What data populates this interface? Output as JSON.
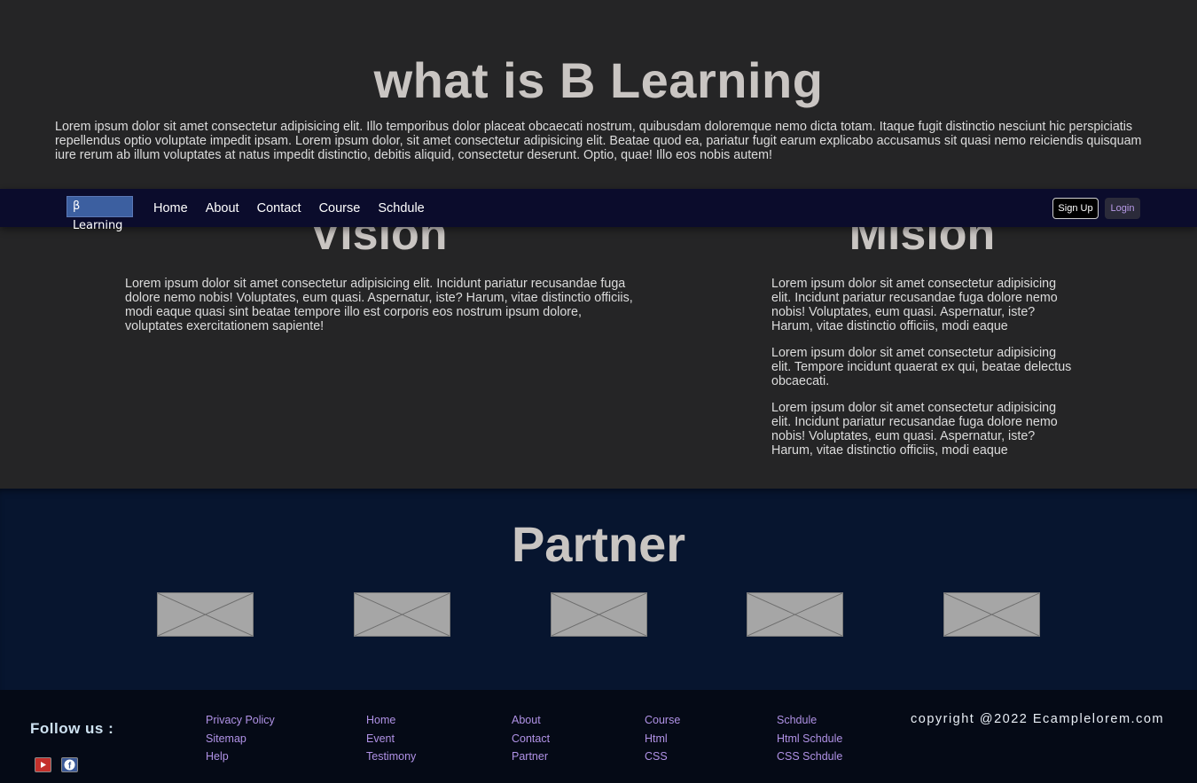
{
  "intro": {
    "title": "what is B Learning",
    "text": "Lorem ipsum dolor sit amet consectetur adipisicing elit. Illo temporibus dolor placeat obcaecati nostrum, quibusdam doloremque nemo dicta totam. Itaque fugit distinctio nesciunt hic perspiciatis repellendus optio voluptate impedit ipsam. Lorem ipsum dolor, sit amet consectetur adipisicing elit. Beatae quod ea, pariatur fugit earum explicabo accusamus sit quasi nemo reiciendis quisquam iure rerum ab illum voluptates at natus impedit distinctio, debitis aliquid, consectetur deserunt. Optio, quae! Illo eos nobis autem!"
  },
  "navbar": {
    "brand": "β Learning",
    "links": [
      "Home",
      "About",
      "Contact",
      "Course",
      "Schdule"
    ],
    "signup_label": "Sign Up",
    "login_label": "Login"
  },
  "vision": {
    "title": "Vision",
    "text": "Lorem ipsum dolor sit amet consectetur adipisicing elit. Incidunt pariatur recusandae fuga dolore nemo nobis! Voluptates, eum quasi. Aspernatur, iste? Harum, vitae distinctio officiis, modi eaque quasi sint beatae tempore illo est corporis eos nostrum ipsum dolore, voluptates exercitationem sapiente!"
  },
  "mision": {
    "title": "Mision",
    "paragraphs": [
      "Lorem ipsum dolor sit amet consectetur adipisicing elit. Incidunt pariatur recusandae fuga dolore nemo nobis! Voluptates, eum quasi. Aspernatur, iste? Harum, vitae distinctio officiis, modi eaque",
      "Lorem ipsum dolor sit amet consectetur adipisicing elit. Tempore incidunt quaerat ex qui, beatae delectus obcaecati.",
      "Lorem ipsum dolor sit amet consectetur adipisicing elit. Incidunt pariatur recusandae fuga dolore nemo nobis! Voluptates, eum quasi. Aspernatur, iste? Harum, vitae distinctio officiis, modi eaque"
    ]
  },
  "partner": {
    "title": "Partner"
  },
  "footer": {
    "follow_label": "Follow us :",
    "social_icons": [
      "youtube-icon",
      "facebook-icon"
    ],
    "columns": [
      [
        "Privacy Policy",
        "Sitemap",
        "Help"
      ],
      [
        "Home",
        "Event",
        "Testimony"
      ],
      [
        "About",
        "Contact",
        "Partner"
      ],
      [
        "Course",
        "Html",
        "CSS"
      ],
      [
        "Schdule",
        "Html Schdule",
        "CSS Schdule"
      ]
    ],
    "copyright": "copyright @2022 Ecamplelorem.com"
  },
  "colors": {
    "background": "#252526",
    "navbar": "#0b0c2c",
    "partner_bg": "#07152f",
    "footer_bg": "#050a16",
    "footer_link": "#b092e6",
    "heading": "#c9c5c2"
  }
}
